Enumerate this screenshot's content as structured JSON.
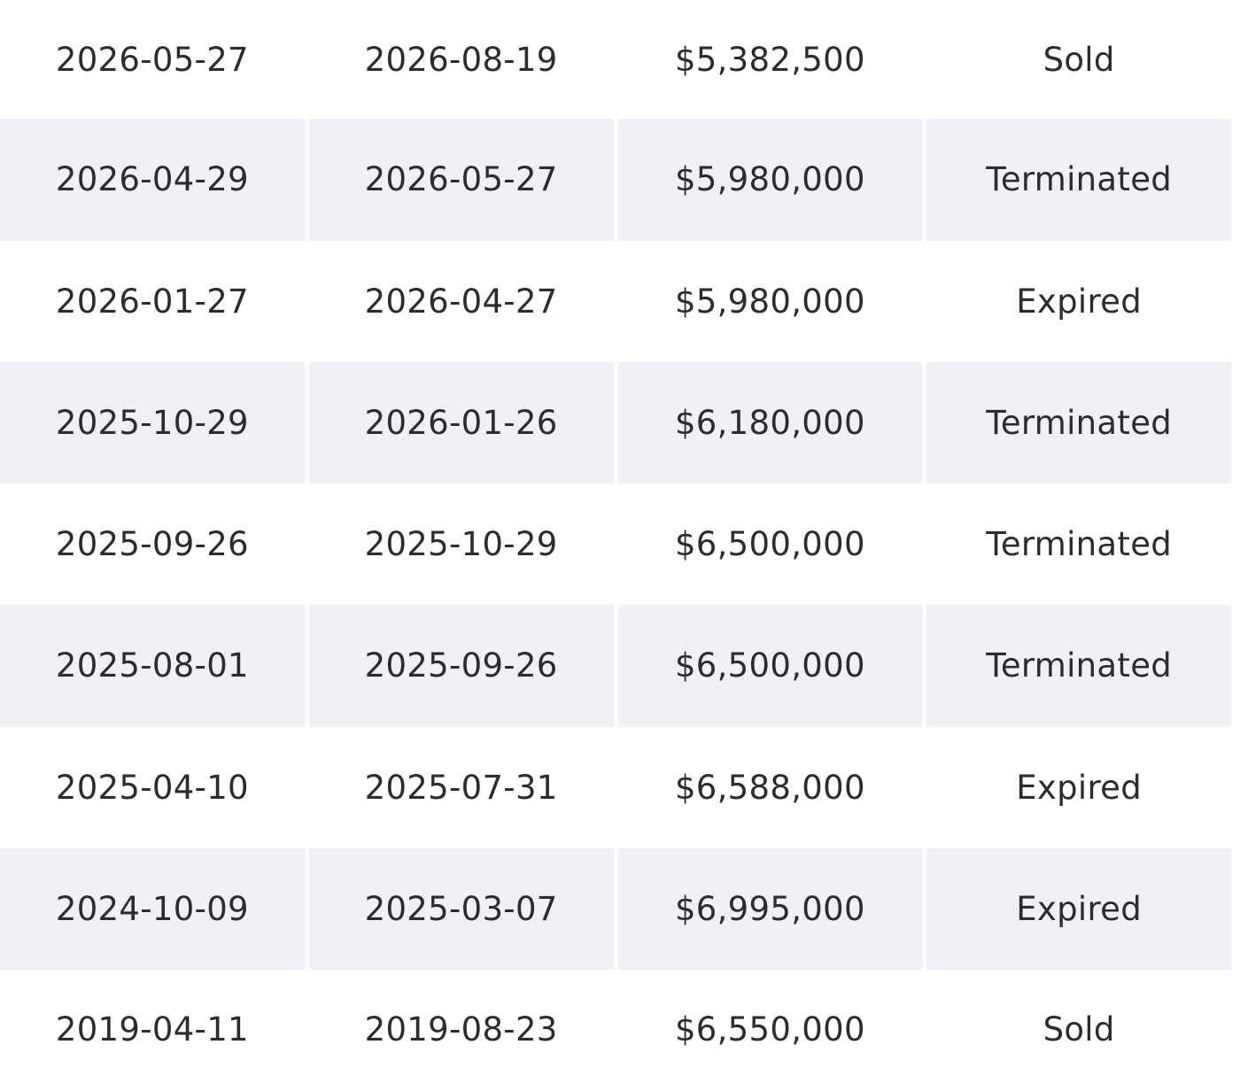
{
  "history": {
    "rows": [
      {
        "start_date": "2026-05-27",
        "end_date": "2026-08-19",
        "price": "$5,382,500",
        "status": "Sold"
      },
      {
        "start_date": "2026-04-29",
        "end_date": "2026-05-27",
        "price": "$5,980,000",
        "status": "Terminated"
      },
      {
        "start_date": "2026-01-27",
        "end_date": "2026-04-27",
        "price": "$5,980,000",
        "status": "Expired"
      },
      {
        "start_date": "2025-10-29",
        "end_date": "2026-01-26",
        "price": "$6,180,000",
        "status": "Terminated"
      },
      {
        "start_date": "2025-09-26",
        "end_date": "2025-10-29",
        "price": "$6,500,000",
        "status": "Terminated"
      },
      {
        "start_date": "2025-08-01",
        "end_date": "2025-09-26",
        "price": "$6,500,000",
        "status": "Terminated"
      },
      {
        "start_date": "2025-04-10",
        "end_date": "2025-07-31",
        "price": "$6,588,000",
        "status": "Expired"
      },
      {
        "start_date": "2024-10-09",
        "end_date": "2025-03-07",
        "price": "$6,995,000",
        "status": "Expired"
      },
      {
        "start_date": "2019-04-11",
        "end_date": "2019-08-23",
        "price": "$6,550,000",
        "status": "Sold"
      }
    ]
  },
  "colors": {
    "stripe_background": "#f1f0f6",
    "text": "#2c2c2e"
  }
}
